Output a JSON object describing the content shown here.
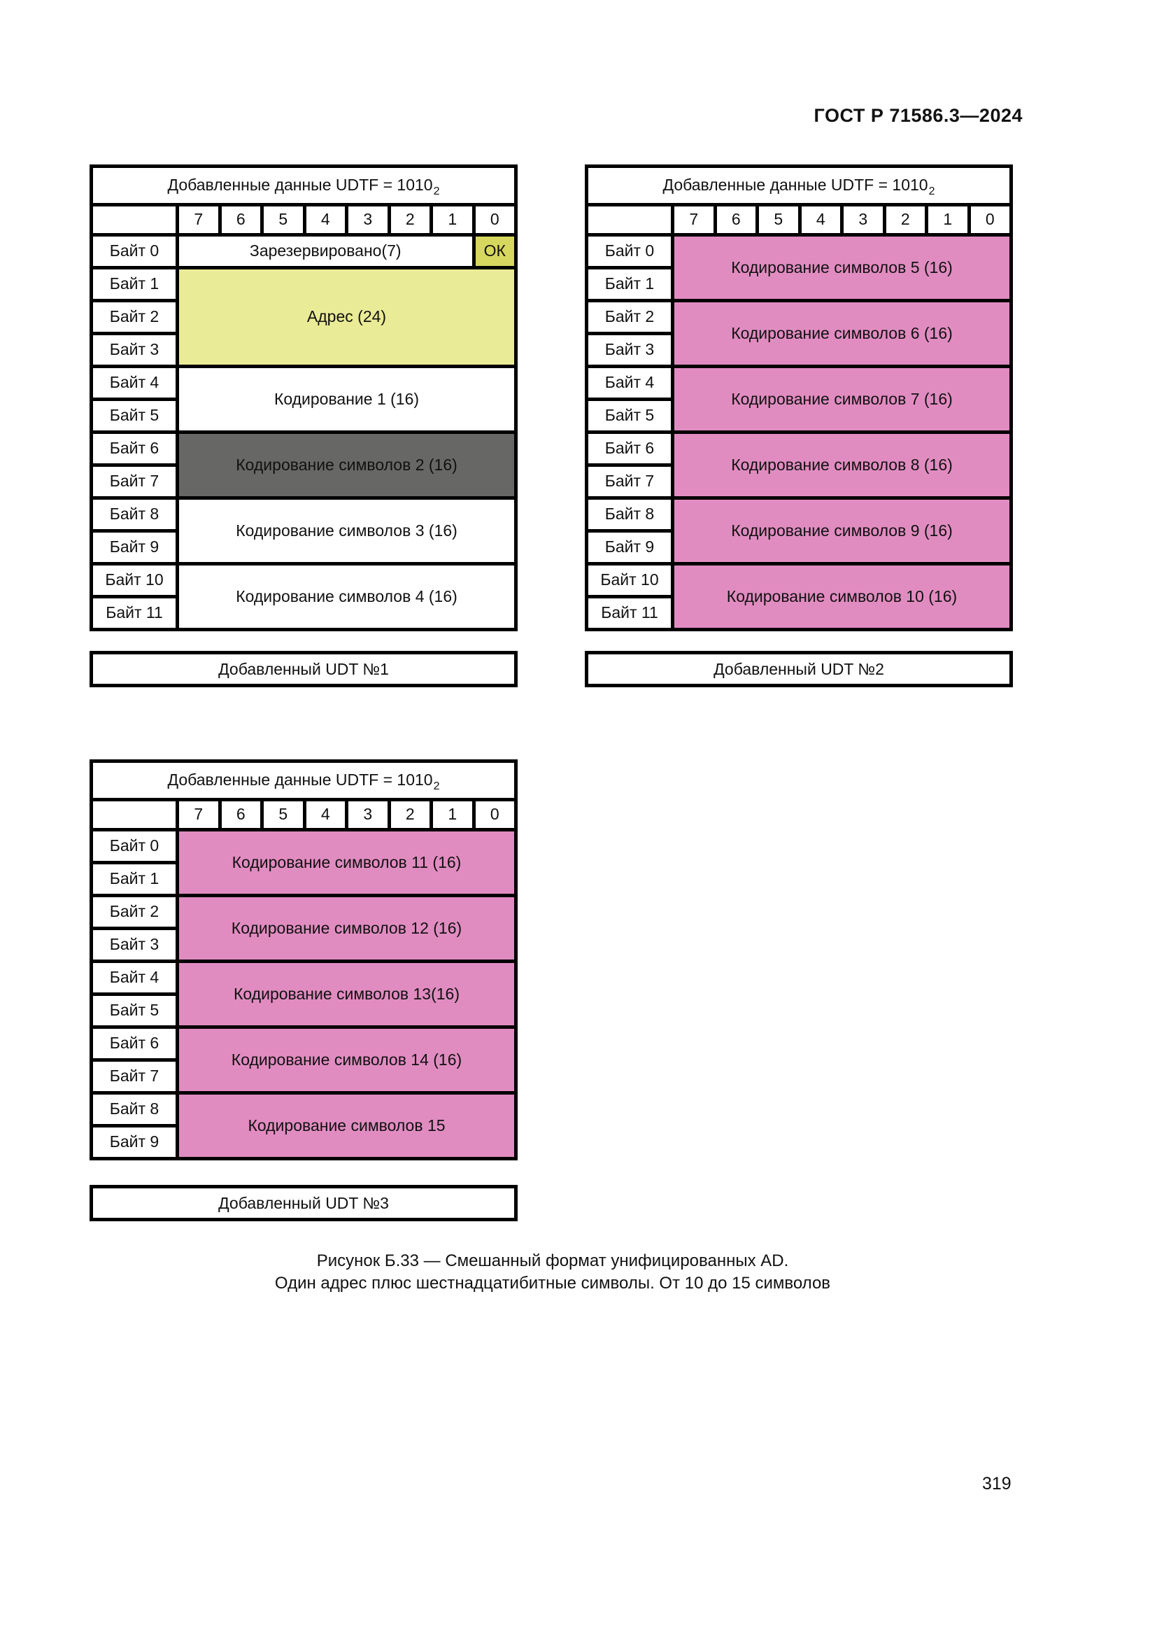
{
  "page": {
    "header": "ГОСТ Р 71586.3—2024",
    "page_number": "319",
    "caption_line1": "Рисунок Б.33 — Смешанный формат унифицированных AD.",
    "caption_line2": "Один адрес плюс шестнадцатибитные символы. От 10 до 15 символов"
  },
  "palette": {
    "white": "#ffffff",
    "yellow": "#eaeb96",
    "olive": "#d6d75f",
    "pink": "#e18cc1",
    "dark": "#676765",
    "border": "#000000"
  },
  "tables": [
    {
      "title": "Добавленные данные UDTF = 1010",
      "title_sub": "2",
      "bits": [
        "7",
        "6",
        "5",
        "4",
        "3",
        "2",
        "1",
        "0"
      ],
      "byte_labels": [
        "Байт 0",
        "Байт 1",
        "Байт 2",
        "Байт 3",
        "Байт 4",
        "Байт 5",
        "Байт 6",
        "Байт 7",
        "Байт 8",
        "Байт 9",
        "Байт 10",
        "Байт 11"
      ],
      "cells": [
        {
          "label": "Зарезервировано(7)",
          "row": 0,
          "rows": 1,
          "col": 0,
          "cols": 7,
          "color": "white"
        },
        {
          "label": "ОК",
          "row": 0,
          "rows": 1,
          "col": 7,
          "cols": 1,
          "color": "olive"
        },
        {
          "label": "Адрес (24)",
          "row": 1,
          "rows": 3,
          "col": 0,
          "cols": 8,
          "color": "yellow"
        },
        {
          "label": "Кодирование 1 (16)",
          "row": 4,
          "rows": 2,
          "col": 0,
          "cols": 8,
          "color": "white"
        },
        {
          "label": "Кодирование символов 2 (16)",
          "row": 6,
          "rows": 2,
          "col": 0,
          "cols": 8,
          "color": "dark"
        },
        {
          "label": "Кодирование символов 3 (16)",
          "row": 8,
          "rows": 2,
          "col": 0,
          "cols": 8,
          "color": "white"
        },
        {
          "label": "Кодирование символов 4 (16)",
          "row": 10,
          "rows": 2,
          "col": 0,
          "cols": 8,
          "color": "white"
        }
      ],
      "footer": "Добавленный UDT №1"
    },
    {
      "title": "Добавленные данные UDTF = 1010",
      "title_sub": "2",
      "bits": [
        "7",
        "6",
        "5",
        "4",
        "3",
        "2",
        "1",
        "0"
      ],
      "byte_labels": [
        "Байт 0",
        "Байт 1",
        "Байт 2",
        "Байт 3",
        "Байт 4",
        "Байт 5",
        "Байт 6",
        "Байт 7",
        "Байт 8",
        "Байт 9",
        "Байт 10",
        "Байт 11"
      ],
      "cells": [
        {
          "label": "Кодирование символов 5 (16)",
          "row": 0,
          "rows": 2,
          "col": 0,
          "cols": 8,
          "color": "pink"
        },
        {
          "label": "Кодирование символов 6 (16)",
          "row": 2,
          "rows": 2,
          "col": 0,
          "cols": 8,
          "color": "pink"
        },
        {
          "label": "Кодирование символов 7 (16)",
          "row": 4,
          "rows": 2,
          "col": 0,
          "cols": 8,
          "color": "pink"
        },
        {
          "label": "Кодирование символов 8 (16)",
          "row": 6,
          "rows": 2,
          "col": 0,
          "cols": 8,
          "color": "pink"
        },
        {
          "label": "Кодирование символов 9 (16)",
          "row": 8,
          "rows": 2,
          "col": 0,
          "cols": 8,
          "color": "pink"
        },
        {
          "label": "Кодирование символов 10 (16)",
          "row": 10,
          "rows": 2,
          "col": 0,
          "cols": 8,
          "color": "pink"
        }
      ],
      "footer": "Добавленный UDT №2"
    },
    {
      "title": "Добавленные данные UDTF = 1010",
      "title_sub": "2",
      "bits": [
        "7",
        "6",
        "5",
        "4",
        "3",
        "2",
        "1",
        "0"
      ],
      "byte_labels": [
        "Байт 0",
        "Байт 1",
        "Байт 2",
        "Байт 3",
        "Байт 4",
        "Байт 5",
        "Байт 6",
        "Байт 7",
        "Байт 8",
        "Байт 9"
      ],
      "cells": [
        {
          "label": "Кодирование символов 11 (16)",
          "row": 0,
          "rows": 2,
          "col": 0,
          "cols": 8,
          "color": "pink"
        },
        {
          "label": "Кодирование символов 12 (16)",
          "row": 2,
          "rows": 2,
          "col": 0,
          "cols": 8,
          "color": "pink"
        },
        {
          "label": "Кодирование символов 13(16)",
          "row": 4,
          "rows": 2,
          "col": 0,
          "cols": 8,
          "color": "pink"
        },
        {
          "label": "Кодирование символов 14 (16)",
          "row": 6,
          "rows": 2,
          "col": 0,
          "cols": 8,
          "color": "pink"
        },
        {
          "label": "Кодирование символов 15",
          "row": 8,
          "rows": 2,
          "col": 0,
          "cols": 8,
          "color": "pink"
        }
      ],
      "footer": "Добавленный UDT №3"
    }
  ]
}
